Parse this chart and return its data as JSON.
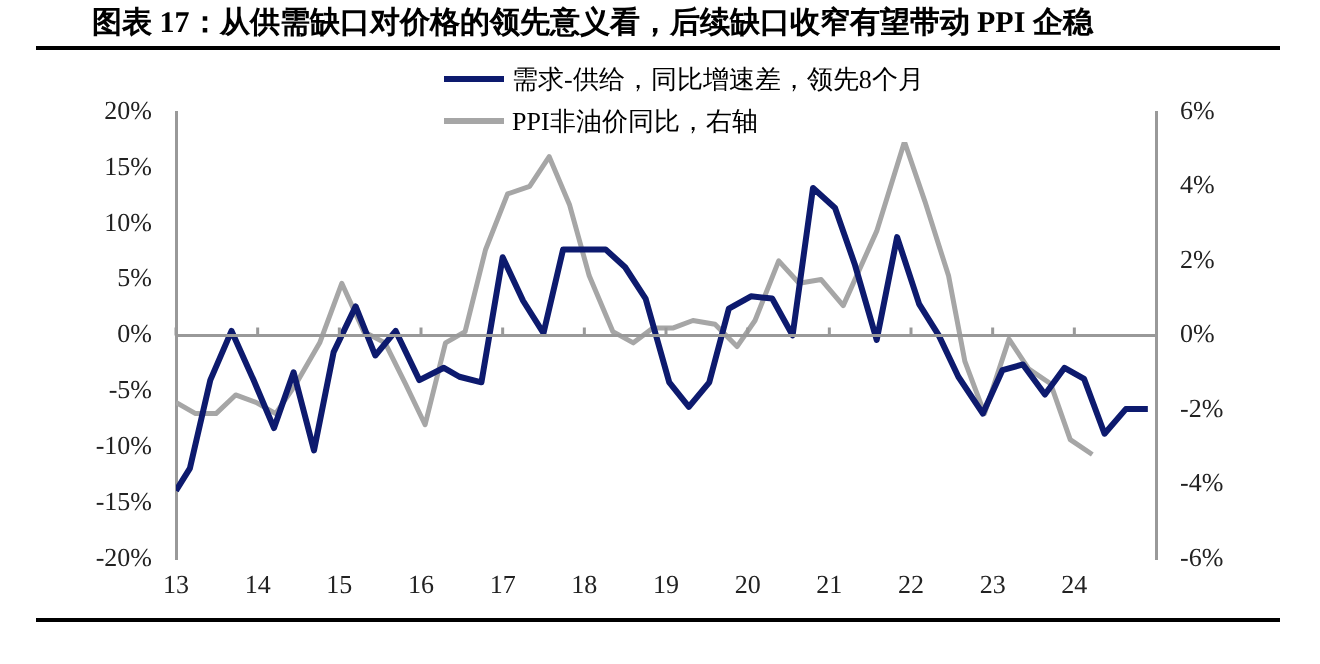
{
  "chart_data": {
    "type": "line",
    "title": "图表 17：从供需缺口对价格的领先意义看，后续缺口收窄有望带动 PPI 企稳",
    "xlim": [
      13,
      25
    ],
    "xticks": [
      13,
      14,
      15,
      16,
      17,
      18,
      19,
      20,
      21,
      22,
      23,
      24
    ],
    "ylim": [
      -20,
      20
    ],
    "yticks": [
      {
        "value": -20,
        "label": "-20%"
      },
      {
        "value": -15,
        "label": "-15%"
      },
      {
        "value": -10,
        "label": "-10%"
      },
      {
        "value": -5,
        "label": "-5%"
      },
      {
        "value": 0,
        "label": "0%"
      },
      {
        "value": 5,
        "label": "5%"
      },
      {
        "value": 10,
        "label": "10%"
      },
      {
        "value": 15,
        "label": "15%"
      },
      {
        "value": 20,
        "label": "20%"
      }
    ],
    "y2lim": [
      -6,
      6
    ],
    "y2ticks": [
      {
        "value": -6,
        "label": "-6%"
      },
      {
        "value": -4,
        "label": "-4%"
      },
      {
        "value": -2,
        "label": "-2%"
      },
      {
        "value": 0,
        "label": "0%"
      },
      {
        "value": 2,
        "label": "2%"
      },
      {
        "value": 4,
        "label": "4%"
      },
      {
        "value": 6,
        "label": "6%"
      }
    ],
    "grid": false,
    "ref_lines": [
      {
        "axis": "y",
        "value": 0,
        "color": "#999999"
      }
    ],
    "legend": "top",
    "marker": "none",
    "line_style": "solid",
    "series": [
      {
        "name": "需求-供给，同比增速差，领先8个月",
        "color": "#0d1a6e",
        "x": [
          13.0,
          13.17,
          13.42,
          13.68,
          13.95,
          14.2,
          14.44,
          14.69,
          14.93,
          15.2,
          15.44,
          15.69,
          15.98,
          16.28,
          16.47,
          16.74,
          17.0,
          17.25,
          17.5,
          17.74,
          18.26,
          18.5,
          18.75,
          19.04,
          19.28,
          19.53,
          19.77,
          20.04,
          20.3,
          20.55,
          20.8,
          21.07,
          21.31,
          21.58,
          21.83,
          22.1,
          22.34,
          22.58,
          22.88,
          23.12,
          23.37,
          23.64,
          23.88,
          24.12,
          24.37,
          24.63,
          24.9
        ],
        "values": [
          -13.9,
          -11.9,
          -4.0,
          0.4,
          -4.0,
          -8.3,
          -3.3,
          -10.3,
          -1.5,
          2.6,
          -1.8,
          0.4,
          -4.0,
          -2.9,
          -3.7,
          -4.2,
          7.0,
          3.1,
          0.2,
          7.7,
          7.7,
          6.1,
          3.3,
          -4.2,
          -6.4,
          -4.2,
          2.4,
          3.5,
          3.3,
          0.0,
          13.2,
          11.4,
          6.4,
          -0.4,
          8.8,
          2.8,
          0.0,
          -3.7,
          -7.0,
          -3.1,
          -2.6,
          -5.3,
          -2.9,
          -3.9,
          -8.8,
          -6.6,
          -6.6
        ]
      },
      {
        "name": "PPI非油价同比，右轴",
        "color": "#a6a6a6",
        "axis": "y2",
        "x": [
          13.0,
          13.24,
          13.49,
          13.73,
          13.98,
          14.22,
          14.47,
          14.76,
          15.03,
          15.3,
          15.56,
          15.81,
          16.05,
          16.3,
          16.54,
          16.79,
          17.06,
          17.33,
          17.57,
          17.82,
          18.06,
          18.35,
          18.6,
          18.84,
          19.09,
          19.33,
          19.6,
          19.87,
          20.09,
          20.38,
          20.63,
          20.9,
          21.17,
          21.58,
          21.92,
          22.17,
          22.46,
          22.66,
          22.9,
          23.2,
          23.44,
          23.71,
          23.95,
          24.22
        ],
        "values": [
          -1.8,
          -2.1,
          -2.1,
          -1.6,
          -1.8,
          -2.1,
          -1.3,
          -0.2,
          1.4,
          0.1,
          -0.2,
          -1.3,
          -2.4,
          -0.2,
          0.1,
          2.3,
          3.8,
          4.0,
          4.8,
          3.5,
          1.6,
          0.1,
          -0.2,
          0.2,
          0.2,
          0.4,
          0.3,
          -0.3,
          0.4,
          2.0,
          1.4,
          1.5,
          0.8,
          2.8,
          5.2,
          3.6,
          1.6,
          -0.7,
          -2.1,
          -0.1,
          -0.9,
          -1.3,
          -2.8,
          -3.2
        ]
      }
    ]
  }
}
